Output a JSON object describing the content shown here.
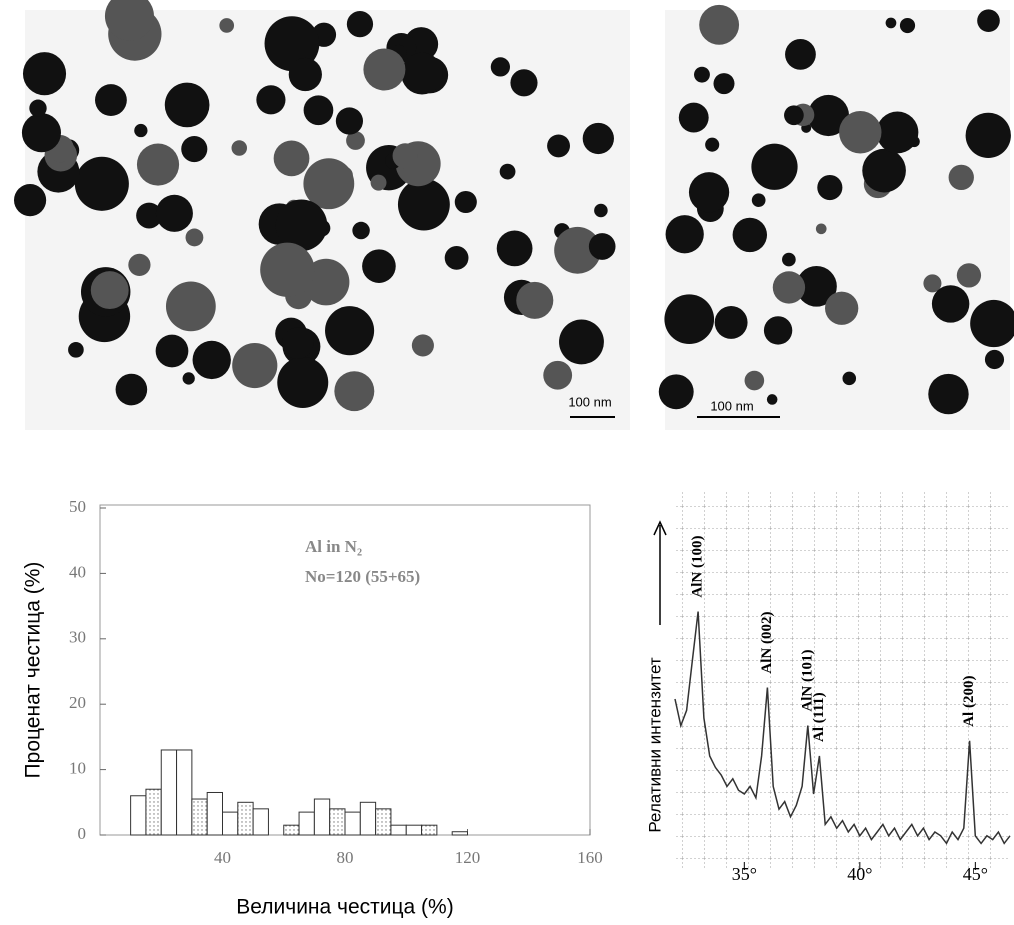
{
  "micrographs": [
    {
      "scale_bar": "100 nm"
    },
    {
      "scale_bar": "100 nm"
    }
  ],
  "chart_data": [
    {
      "type": "histogram",
      "xlabel": "Величина честица (%)",
      "ylabel": "Проценат честица (%)",
      "annotations": [
        "Al in N₂",
        "No=120 (55+65)"
      ],
      "bins": [
        10,
        15,
        20,
        25,
        30,
        35,
        40,
        45,
        50,
        55,
        60,
        65,
        70,
        75,
        80,
        85,
        90,
        95,
        100,
        105,
        110,
        115,
        120
      ],
      "values": [
        6,
        7,
        13,
        13,
        5.5,
        6.5,
        3.5,
        5,
        4,
        0,
        1.5,
        3.5,
        5.5,
        4,
        3.5,
        5,
        4,
        1.5,
        1.5,
        1.5,
        0,
        0.5
      ],
      "xlim": [
        0,
        160
      ],
      "ylim": [
        0,
        50
      ],
      "xticks": [
        40,
        80,
        120,
        160
      ],
      "yticks": [
        0,
        10,
        20,
        30,
        40,
        50
      ],
      "color": "#ffffff"
    },
    {
      "type": "line",
      "ylabel": "Релативни интензитет",
      "color": "#333333",
      "x": [
        32,
        32.25,
        32.5,
        32.75,
        33,
        33.25,
        33.5,
        33.75,
        34,
        34.25,
        34.5,
        34.75,
        35,
        35.25,
        35.5,
        35.75,
        36,
        36.25,
        36.5,
        36.75,
        37,
        37.25,
        37.5,
        37.75,
        38,
        38.25,
        38.5,
        38.75,
        39,
        39.25,
        39.5,
        39.75,
        40,
        40.25,
        40.5,
        40.75,
        41,
        41.25,
        41.5,
        41.75,
        42,
        42.25,
        42.5,
        42.75,
        43,
        43.25,
        43.5,
        43.75,
        44,
        44.25,
        44.5,
        44.75,
        45,
        45.25,
        45.5,
        45.75,
        46,
        46.25,
        46.5
      ],
      "values": [
        45,
        38,
        42,
        55,
        68,
        40,
        30,
        27,
        25,
        22,
        24,
        21,
        20,
        22,
        19,
        30,
        48,
        22,
        16,
        18,
        14,
        17,
        22,
        38,
        20,
        30,
        12,
        14,
        11,
        13,
        10,
        12,
        9,
        11,
        8,
        10,
        12,
        9,
        11,
        8,
        10,
        12,
        9,
        11,
        8,
        10,
        9,
        7,
        10,
        8,
        11,
        34,
        9,
        7,
        9,
        8,
        10,
        7,
        9
      ],
      "xlim": [
        32,
        46.5
      ],
      "ylim": [
        0,
        100
      ],
      "xticks": [
        {
          "value": 35,
          "label": "35°"
        },
        {
          "value": 40,
          "label": "40°"
        },
        {
          "value": 45,
          "label": "45°"
        }
      ],
      "peaks": [
        {
          "text": "AlN (100)",
          "x": 33
        },
        {
          "text": "AlN (002)",
          "x": 36
        },
        {
          "text": "AlN (101)",
          "x": 37.75
        },
        {
          "text": "Al (111)",
          "x": 38.25
        },
        {
          "text": "Al (200)",
          "x": 44.75
        }
      ]
    }
  ]
}
